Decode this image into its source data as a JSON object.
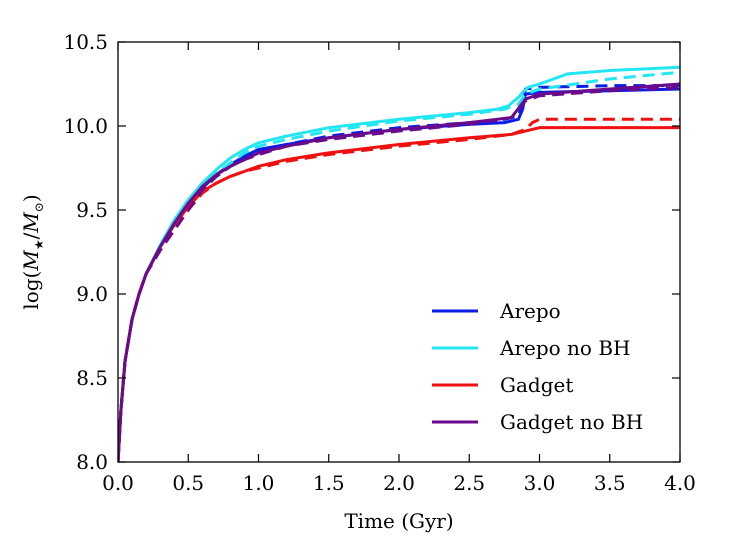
{
  "chart_data": {
    "type": "line",
    "title": "",
    "xlabel": "Time (Gyr)",
    "ylabel_parts": {
      "prefix": "log(",
      "m1": "M",
      "sub1": "★",
      "slash": "/",
      "m2": "M",
      "sub2": "⊙",
      "suffix": ")"
    },
    "xlim": [
      0.0,
      4.0
    ],
    "ylim": [
      8.0,
      10.5
    ],
    "xticks": [
      0.0,
      0.5,
      1.0,
      1.5,
      2.0,
      2.5,
      3.0,
      3.5,
      4.0
    ],
    "xtick_labels": [
      "0.0",
      "0.5",
      "1.0",
      "1.5",
      "2.0",
      "2.5",
      "3.0",
      "3.5",
      "4.0"
    ],
    "yticks": [
      8.0,
      8.5,
      9.0,
      9.5,
      10.0,
      10.5
    ],
    "ytick_labels": [
      "8.0",
      "8.5",
      "9.0",
      "9.5",
      "10.0",
      "10.5"
    ],
    "legend_position": "lower-right",
    "series": [
      {
        "name": "Arepo",
        "color": "#0a1de6",
        "style": "solid",
        "in_legend": true,
        "x": [
          0.0,
          0.02,
          0.05,
          0.1,
          0.15,
          0.2,
          0.3,
          0.4,
          0.5,
          0.6,
          0.7,
          0.8,
          0.9,
          1.0,
          1.2,
          1.5,
          2.0,
          2.5,
          2.75,
          2.85,
          2.88,
          2.9,
          3.0,
          3.5,
          4.0
        ],
        "y": [
          8.0,
          8.3,
          8.6,
          8.85,
          9.0,
          9.12,
          9.28,
          9.42,
          9.54,
          9.63,
          9.71,
          9.77,
          9.82,
          9.86,
          9.89,
          9.93,
          9.98,
          10.01,
          10.02,
          10.04,
          10.1,
          10.19,
          10.2,
          10.21,
          10.22
        ]
      },
      {
        "name": "Arepo dashed",
        "color": "#0a1de6",
        "style": "dashed",
        "in_legend": false,
        "x": [
          0.0,
          0.02,
          0.05,
          0.1,
          0.15,
          0.2,
          0.3,
          0.4,
          0.5,
          0.6,
          0.7,
          0.8,
          0.9,
          1.0,
          1.2,
          1.5,
          2.0,
          2.5,
          2.75,
          2.85,
          2.88,
          2.9,
          3.0,
          3.5,
          4.0
        ],
        "y": [
          8.0,
          8.3,
          8.6,
          8.85,
          9.0,
          9.12,
          9.28,
          9.41,
          9.53,
          9.62,
          9.7,
          9.76,
          9.81,
          9.85,
          9.89,
          9.94,
          9.99,
          10.02,
          10.04,
          10.06,
          10.14,
          10.22,
          10.23,
          10.24,
          10.24
        ]
      },
      {
        "name": "Arepo no BH",
        "color": "#22e6f2",
        "style": "solid",
        "in_legend": true,
        "x": [
          0.0,
          0.02,
          0.05,
          0.1,
          0.15,
          0.2,
          0.3,
          0.4,
          0.5,
          0.6,
          0.7,
          0.8,
          0.9,
          1.0,
          1.2,
          1.5,
          2.0,
          2.5,
          2.7,
          2.78,
          2.82,
          2.85,
          2.88,
          2.92,
          3.0,
          3.2,
          3.5,
          4.0
        ],
        "y": [
          8.0,
          8.3,
          8.6,
          8.85,
          9.0,
          9.12,
          9.29,
          9.44,
          9.56,
          9.66,
          9.74,
          9.81,
          9.86,
          9.9,
          9.94,
          9.99,
          10.04,
          10.08,
          10.1,
          10.12,
          10.15,
          10.17,
          10.2,
          10.23,
          10.25,
          10.31,
          10.33,
          10.35
        ]
      },
      {
        "name": "Arepo no BH dashed",
        "color": "#22e6f2",
        "style": "dashed",
        "in_legend": false,
        "x": [
          0.0,
          0.02,
          0.05,
          0.1,
          0.15,
          0.2,
          0.3,
          0.4,
          0.5,
          0.6,
          0.7,
          0.8,
          0.9,
          1.0,
          1.2,
          1.5,
          2.0,
          2.5,
          2.75,
          2.85,
          2.9,
          3.0,
          3.5,
          4.0
        ],
        "y": [
          8.0,
          8.3,
          8.6,
          8.85,
          9.0,
          9.12,
          9.28,
          9.42,
          9.54,
          9.64,
          9.72,
          9.78,
          9.84,
          9.88,
          9.92,
          9.97,
          10.03,
          10.07,
          10.1,
          10.13,
          10.19,
          10.22,
          10.28,
          10.32
        ]
      },
      {
        "name": "Gadget",
        "color": "#f01010",
        "style": "solid",
        "in_legend": true,
        "x": [
          0.0,
          0.02,
          0.05,
          0.1,
          0.15,
          0.2,
          0.3,
          0.4,
          0.5,
          0.6,
          0.7,
          0.8,
          0.9,
          1.0,
          1.2,
          1.5,
          2.0,
          2.5,
          2.8,
          2.9,
          3.0,
          3.5,
          4.0
        ],
        "y": [
          8.0,
          8.3,
          8.6,
          8.85,
          9.0,
          9.12,
          9.28,
          9.41,
          9.52,
          9.61,
          9.66,
          9.7,
          9.73,
          9.76,
          9.8,
          9.84,
          9.89,
          9.93,
          9.95,
          9.97,
          9.99,
          9.99,
          9.99
        ]
      },
      {
        "name": "Gadget dashed",
        "color": "#f01010",
        "style": "dashed",
        "in_legend": false,
        "x": [
          0.0,
          0.02,
          0.05,
          0.1,
          0.15,
          0.2,
          0.3,
          0.4,
          0.5,
          0.6,
          0.7,
          0.8,
          0.9,
          1.0,
          1.2,
          1.5,
          2.0,
          2.5,
          2.8,
          2.9,
          2.95,
          3.0,
          3.5,
          4.0
        ],
        "y": [
          8.0,
          8.3,
          8.6,
          8.85,
          9.0,
          9.12,
          9.26,
          9.38,
          9.5,
          9.6,
          9.66,
          9.7,
          9.73,
          9.75,
          9.79,
          9.83,
          9.88,
          9.92,
          9.95,
          9.98,
          10.02,
          10.04,
          10.04,
          10.04
        ]
      },
      {
        "name": "Gadget no BH",
        "color": "#6b0a8c",
        "style": "solid",
        "in_legend": true,
        "x": [
          0.0,
          0.02,
          0.05,
          0.1,
          0.15,
          0.2,
          0.3,
          0.4,
          0.5,
          0.6,
          0.7,
          0.8,
          0.9,
          1.0,
          1.2,
          1.5,
          2.0,
          2.5,
          2.8,
          2.9,
          3.0,
          3.5,
          4.0
        ],
        "y": [
          8.0,
          8.3,
          8.6,
          8.85,
          9.0,
          9.12,
          9.28,
          9.42,
          9.54,
          9.64,
          9.71,
          9.76,
          9.8,
          9.84,
          9.88,
          9.93,
          9.98,
          10.02,
          10.05,
          10.16,
          10.19,
          10.22,
          10.25
        ]
      },
      {
        "name": "Gadget no BH dashed",
        "color": "#6b0a8c",
        "style": "dashed",
        "in_legend": false,
        "x": [
          0.0,
          0.02,
          0.05,
          0.1,
          0.15,
          0.2,
          0.3,
          0.4,
          0.5,
          0.6,
          0.7,
          0.8,
          0.9,
          1.0,
          1.2,
          1.5,
          2.0,
          2.5,
          2.8,
          2.9,
          3.0,
          3.5,
          4.0
        ],
        "y": [
          8.0,
          8.3,
          8.6,
          8.85,
          9.0,
          9.12,
          9.26,
          9.38,
          9.5,
          9.62,
          9.7,
          9.76,
          9.8,
          9.83,
          9.88,
          9.92,
          9.97,
          10.01,
          10.05,
          10.15,
          10.18,
          10.21,
          10.23
        ]
      }
    ]
  }
}
